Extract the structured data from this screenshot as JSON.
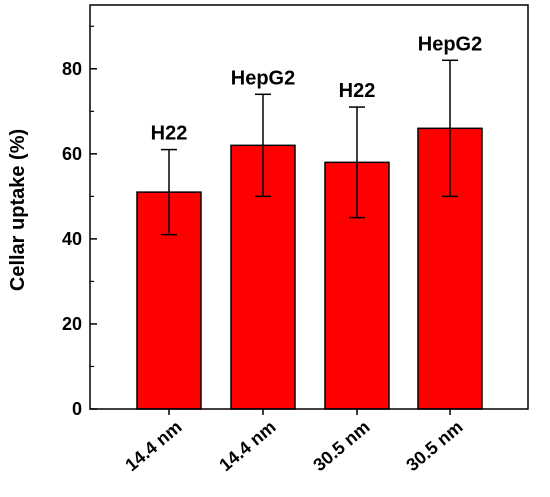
{
  "chart_data": {
    "type": "bar",
    "title": "",
    "xlabel": "",
    "ylabel": "Cellar uptake (%)",
    "ylim": [
      0,
      95
    ],
    "yticks": [
      0,
      20,
      40,
      60,
      80
    ],
    "categories": [
      "14.4 nm",
      "14.4 nm",
      "30.5 nm",
      "30.5 nm"
    ],
    "values": [
      51,
      62,
      58,
      66
    ],
    "error_low": [
      41,
      50,
      45,
      50
    ],
    "error_high": [
      61,
      74,
      71,
      82
    ],
    "bar_labels": [
      "H22",
      "HepG2",
      "H22",
      "HepG2"
    ],
    "bar_color": "#ff0000",
    "grid": false,
    "legend": "none"
  }
}
